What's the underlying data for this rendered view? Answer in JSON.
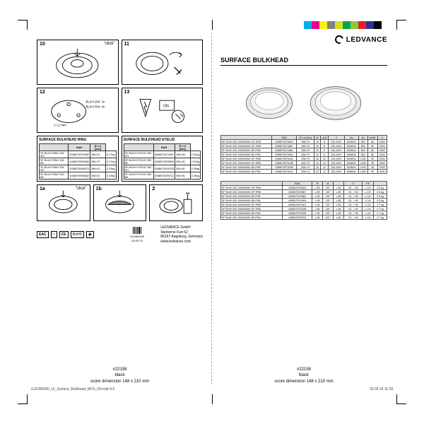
{
  "colorbar": [
    "#00aeef",
    "#ec008c",
    "#fff200",
    "#808285",
    "#d7df23",
    "#00a651",
    "#8dc63e",
    "#ed1c24",
    "#2e3192",
    "#000000"
  ],
  "brand": "LEDVANCE",
  "product_title": "SURFACE BULKHEAD",
  "panels": {
    "p10": {
      "num": "10",
      "click": "\"click\""
    },
    "p11": {
      "num": "11"
    },
    "p12": {
      "num": "12",
      "torque": "≤ 1.2 Nm",
      "note1": "BLKH 250: 3x",
      "note2": "BLKH 300: 4x"
    },
    "p13": {
      "num": "13"
    },
    "p1a": {
      "num": "1a",
      "click": "\"click\""
    },
    "p1b": {
      "num": "1b"
    },
    "p2": {
      "num": "2"
    }
  },
  "ring": {
    "title": "SURFACE BULKHEAD RING",
    "cols": [
      "",
      "EAN",
      "Ø x h [mm]"
    ],
    "rows": [
      [
        "SF BLKH RING 250 WT",
        "4058075374980",
        "256×37",
        "0.27kg"
      ],
      [
        "SF BLKH RING 250 BK",
        "4058075399668",
        "256×37",
        "0.27kg"
      ],
      [
        "SF BLKH RING 300 WT",
        "4058075399675",
        "306×41",
        "0.29kg"
      ],
      [
        "SF BLKH RING 300 BK",
        "4058075399682",
        "306×41",
        "0.29kg"
      ]
    ]
  },
  "eyelid": {
    "title": "SURFACE BULKHEAD EYELID",
    "cols": [
      "",
      "EAN",
      "Ø x h [mm]"
    ],
    "rows": [
      [
        "SF BLKH EYELID 250 WT",
        "4058075374997",
        "256×84",
        "0.31kg"
      ],
      [
        "SF BLKH EYELID 250 BK",
        "4058075399699",
        "256×84",
        "0.31kg"
      ],
      [
        "SF BLKH EYELID 300 WT",
        "4058075399705",
        "306×91",
        "0.39kg"
      ],
      [
        "SF BLKH EYELID 300 BK",
        "4058075399712",
        "306×91",
        "0.39kg"
      ]
    ]
  },
  "certs": [
    "EAC",
    "□",
    "CE",
    "RoHS",
    "▣"
  ],
  "barcode_num": "G11080430",
  "date_small": "25.09.19",
  "company": {
    "name": "LEDVANCE GmbH",
    "addr1": "Steinerne Furt 62",
    "addr2": "86167 Augsburg, Germany",
    "url": "www.ledvance.com"
  },
  "spec1": {
    "cols": [
      "",
      "EAN",
      "Ø x h [mm]",
      "W",
      "ηLB",
      "V",
      "Hz",
      "lm",
      "lm/W",
      "K"
    ],
    "rows": [
      [
        "SF BLKH 250 10W/3000K WT IP65",
        "4058075374843",
        "256×70",
        "10",
        "8",
        "220-240V",
        "50/60Hz",
        "800",
        "80",
        "3000"
      ],
      [
        "SF BLKH 250 10W/4000K WT IP65",
        "4058075374867",
        "256×70",
        "10",
        "8",
        "220-240V",
        "50/60Hz",
        "800",
        "80",
        "4000"
      ],
      [
        "SF BLKH 250 10W/3000K BK IP65",
        "4058075374881",
        "256×70",
        "10",
        "8",
        "220-240V",
        "50/60Hz",
        "800",
        "80",
        "3000"
      ],
      [
        "SF BLKH 250 10W/4000K BK IP65",
        "4058075374904",
        "256×70",
        "10",
        "8",
        "220-240V",
        "50/60Hz",
        "800",
        "80",
        "4000"
      ],
      [
        "SF BLKH 300 15W/3000K WT IP65",
        "4058075375161",
        "306×73",
        "15",
        "12",
        "220-240V",
        "50/60Hz",
        "1400",
        "95",
        "3000"
      ],
      [
        "SF BLKH 300 15W/4000K WT IP65",
        "4058075375185",
        "306×73",
        "15",
        "12",
        "220-240V",
        "50/60Hz",
        "1400",
        "95",
        "4000"
      ],
      [
        "SF BLKH 300 15W/3000K BK IP65",
        "4058075375208",
        "306×73",
        "15",
        "12",
        "220-240V",
        "50/60Hz",
        "1400",
        "95",
        "3000"
      ],
      [
        "SF BLKH 300 15W/4000K BK IP65",
        "4058075375222",
        "306×73",
        "15",
        "12",
        "220-240V",
        "50/60Hz",
        "1400",
        "95",
        "4000"
      ]
    ]
  },
  "spec2": {
    "cols": [
      "",
      "EAN",
      "IP",
      "IK",
      "",
      "°C",
      "PF",
      ""
    ],
    "rows": [
      [
        "SF BLKH 250 10W/3000K WT IP65",
        "4058075374843",
        "≥ 80",
        "120°",
        "≥ 80",
        "-20…+40",
        "≥ 0.5",
        "0.5 kg"
      ],
      [
        "SF BLKH 250 10W/4000K WT IP65",
        "4058075374867",
        "≥ 80",
        "120°",
        "≥ 80",
        "-20…+40",
        "≥ 0.5",
        "0.5 kg"
      ],
      [
        "SF BLKH 250 10W/3000K BK IP65",
        "4058075374881",
        "≥ 80",
        "120°",
        "≥ 80",
        "-20…+40",
        "≥ 0.5",
        "0.5 kg"
      ],
      [
        "SF BLKH 250 10W/4000K BK IP65",
        "4058075374904",
        "≥ 80",
        "120°",
        "≥ 80",
        "-20…+40",
        "≥ 0.5",
        "0.5 kg"
      ],
      [
        "SF BLKH 300 15W/3000K WT IP65",
        "4058075375161",
        "≥ 80",
        "120°",
        "≥ 80",
        "-20…+40",
        "≥ 0.5",
        "0.7 kg"
      ],
      [
        "SF BLKH 300 15W/4000K WT IP65",
        "4058075375185",
        "≥ 80",
        "120°",
        "≥ 80",
        "-20…+40",
        "≥ 0.5",
        "0.7 kg"
      ],
      [
        "SF BLKH 300 15W/3000K BK IP65",
        "4058075375208",
        "≥ 80",
        "120°",
        "≥ 80",
        "-20…+40",
        "≥ 0.5",
        "0.7 kg"
      ],
      [
        "SF BLKH 300 15W/4000K BK IP65",
        "4058075375222",
        "≥ 80",
        "120°",
        "≥ 80",
        "-20…+40",
        "≥ 0.5",
        "0.7 kg"
      ]
    ]
  },
  "footer": {
    "sku": "#22158",
    "color": "black",
    "dim": "score dimension 148 x 210 mm"
  },
  "meta_left": "G11080430_UI_Surface_Bulkhead_MCh_04.indd   4-5",
  "meta_right": "25.09.19   11:28"
}
